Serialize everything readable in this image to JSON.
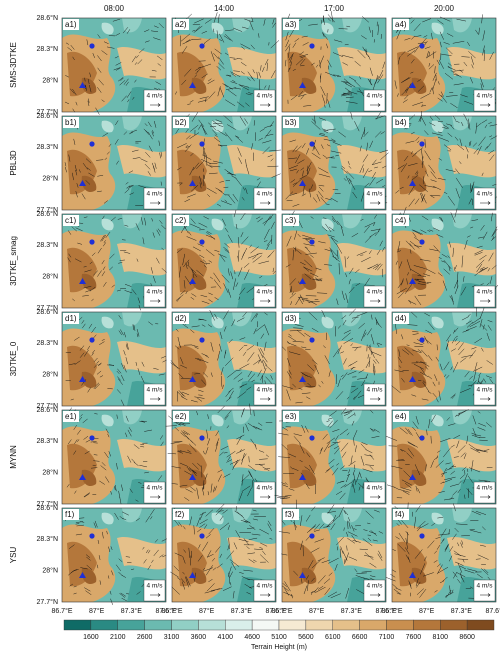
{
  "columns": [
    "08:00",
    "14:00",
    "17:00",
    "20:00"
  ],
  "rows": [
    "SMS-3DTKE",
    "PBL3D",
    "3DTKE_smag",
    "3DTKE_0",
    "MYNN",
    "YSU"
  ],
  "panels": [
    [
      "a1)",
      "a2)",
      "a3)",
      "a4)"
    ],
    [
      "b1)",
      "b2)",
      "b3)",
      "b4)"
    ],
    [
      "c1)",
      "c2)",
      "c3)",
      "c4)"
    ],
    [
      "d1)",
      "d2)",
      "d3)",
      "d4)"
    ],
    [
      "e1)",
      "e2)",
      "e3)",
      "e4)"
    ],
    [
      "f1)",
      "f2)",
      "f3)",
      "f4)"
    ]
  ],
  "lat_ticks": [
    "28.6°N",
    "28.3°N",
    "28°N",
    "27.7°N"
  ],
  "lon_ticks": [
    "86.7°E",
    "87°E",
    "87.3°E",
    "87.6°E"
  ],
  "reference_vector": "4 m/s",
  "colorbar": {
    "label": "Terrain Height (m)",
    "ticks": [
      1600,
      2100,
      2600,
      3100,
      3600,
      4100,
      4600,
      5100,
      5600,
      6100,
      6600,
      7100,
      7600,
      8100,
      8600
    ],
    "colors": [
      "#0f6b66",
      "#2a8a83",
      "#47a39a",
      "#6bbab0",
      "#91cfc5",
      "#b7e0d8",
      "#d9efea",
      "#f4f8f5",
      "#f6ead3",
      "#efd6ae",
      "#e5c08a",
      "#d9a86a",
      "#c98f4f",
      "#b4773b",
      "#9c612c",
      "#7f4b1f"
    ]
  }
}
